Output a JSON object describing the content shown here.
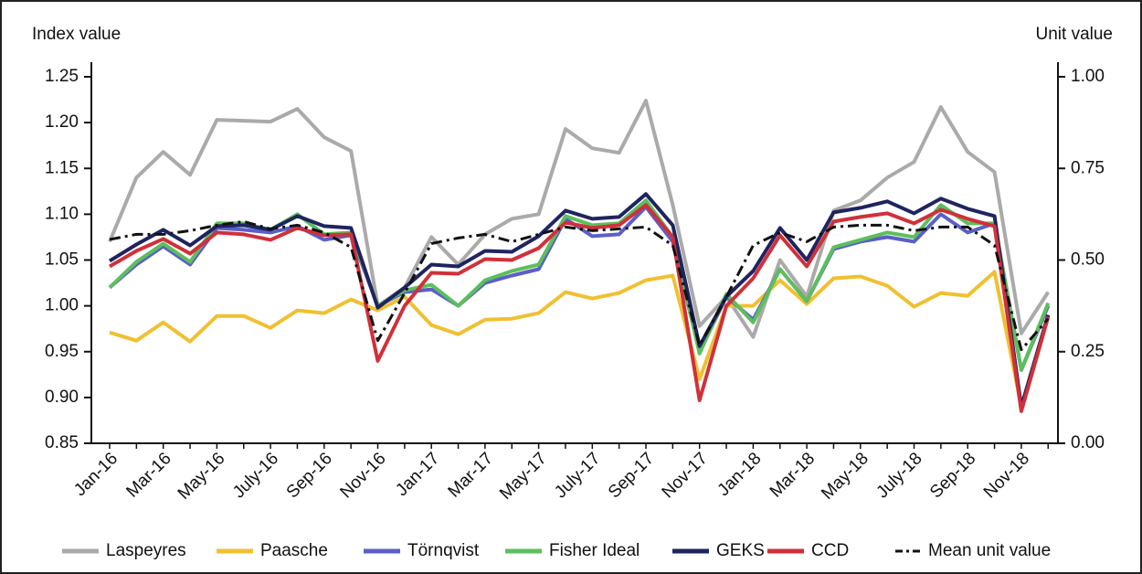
{
  "chart_data": {
    "type": "line",
    "y_label": "Index value",
    "y2_label": "Unit value",
    "categories": [
      "Jan-16",
      null,
      "Mar-16",
      null,
      "May-16",
      null,
      "July-16",
      null,
      "Sep-16",
      null,
      "Nov-16",
      null,
      "Jan-17",
      null,
      "Mar-17",
      null,
      "May-17",
      null,
      "July-17",
      null,
      "Sep-17",
      null,
      "Nov-17",
      null,
      "Jan-18",
      null,
      "Mar-18",
      null,
      "May-18",
      null,
      "July-18",
      null,
      "Sep-18",
      null,
      "Nov-18",
      null
    ],
    "ylim": [
      0.85,
      1.25
    ],
    "yticks": [
      0.85,
      {
        "value": 0.9,
        "label": "0.90"
      },
      0.95,
      {
        "value": 1.0,
        "label": "1.00"
      },
      1.05,
      {
        "value": 1.1,
        "label": "1.10"
      },
      1.15,
      {
        "value": 1.2,
        "label": "1.20"
      },
      1.25
    ],
    "y2lim": [
      0,
      1
    ],
    "y2ticks": [
      {
        "value": 0,
        "label": "0.00"
      },
      0.25,
      {
        "value": 0.5,
        "label": "0.50"
      },
      0.75,
      {
        "value": 1,
        "label": "1.00"
      }
    ],
    "grid": false,
    "legend": "bottom",
    "series": [
      {
        "name": "Laspeyres",
        "color": "#aaaaaa",
        "values": [
          1.07,
          1.14,
          1.168,
          1.143,
          1.203,
          1.202,
          1.201,
          1.215,
          1.184,
          1.169,
          1.0,
          1.02,
          1.075,
          1.045,
          1.078,
          1.095,
          1.1,
          1.193,
          1.172,
          1.167,
          1.224,
          1.11,
          0.978,
          1.01,
          0.966,
          1.05,
          1.01,
          1.104,
          1.115,
          1.14,
          1.157,
          1.217,
          1.168,
          1.146,
          0.97,
          1.015
        ]
      },
      {
        "name": "Paasche",
        "color": "#f0c030",
        "values": [
          0.971,
          0.962,
          0.982,
          0.961,
          0.989,
          0.989,
          0.976,
          0.995,
          0.992,
          1.007,
          0.995,
          1.01,
          0.979,
          0.969,
          0.985,
          0.986,
          0.992,
          1.015,
          1.008,
          1.014,
          1.028,
          1.033,
          0.92,
          1.0,
          1.0,
          1.028,
          1.002,
          1.03,
          1.032,
          1.022,
          0.999,
          1.014,
          1.011,
          1.037,
          0.89,
          0.99
        ]
      },
      {
        "name": "Törnqvist",
        "color": "#5b5fc7",
        "values": [
          1.02,
          1.045,
          1.065,
          1.045,
          1.085,
          1.083,
          1.08,
          1.087,
          1.072,
          1.077,
          1.0,
          1.015,
          1.018,
          1.0,
          1.025,
          1.033,
          1.04,
          1.095,
          1.076,
          1.078,
          1.108,
          1.07,
          0.95,
          1.01,
          0.985,
          1.04,
          1.005,
          1.062,
          1.07,
          1.075,
          1.07,
          1.1,
          1.08,
          1.09,
          0.93,
          1.0
        ]
      },
      {
        "name": "Fisher Ideal",
        "color": "#5cbf5c",
        "values": [
          1.02,
          1.048,
          1.068,
          1.048,
          1.09,
          1.09,
          1.083,
          1.1,
          1.078,
          1.08,
          1.0,
          1.017,
          1.023,
          1.0,
          1.028,
          1.038,
          1.045,
          1.098,
          1.088,
          1.09,
          1.115,
          1.075,
          0.948,
          1.013,
          0.982,
          1.04,
          1.005,
          1.064,
          1.072,
          1.08,
          1.075,
          1.11,
          1.09,
          1.09,
          0.93,
          1.003
        ]
      },
      {
        "name": "GEKS",
        "color": "#1f2460",
        "values": [
          1.049,
          1.067,
          1.083,
          1.066,
          1.087,
          1.088,
          1.083,
          1.098,
          1.087,
          1.085,
          0.998,
          1.02,
          1.045,
          1.043,
          1.06,
          1.059,
          1.076,
          1.104,
          1.095,
          1.097,
          1.122,
          1.088,
          0.956,
          1.01,
          1.038,
          1.085,
          1.05,
          1.102,
          1.107,
          1.114,
          1.101,
          1.117,
          1.106,
          1.098,
          0.89,
          0.99
        ]
      },
      {
        "name": "CCD",
        "color": "#d0303a",
        "values": [
          1.043,
          1.06,
          1.073,
          1.057,
          1.08,
          1.078,
          1.072,
          1.085,
          1.077,
          1.078,
          0.94,
          1.0,
          1.036,
          1.035,
          1.051,
          1.05,
          1.063,
          1.091,
          1.085,
          1.088,
          1.11,
          1.075,
          0.897,
          1.0,
          1.03,
          1.077,
          1.043,
          1.092,
          1.097,
          1.101,
          1.09,
          1.105,
          1.095,
          1.087,
          0.885,
          0.988
        ]
      },
      {
        "name": "Mean unit value",
        "color": "#111111",
        "axis": "y2",
        "line_style": "dashdot",
        "values": [
          0.556,
          0.57,
          0.57,
          0.58,
          0.595,
          0.605,
          0.585,
          0.595,
          0.575,
          0.535,
          0.28,
          0.41,
          0.545,
          0.56,
          0.57,
          0.55,
          0.57,
          0.59,
          0.58,
          0.585,
          0.59,
          0.54,
          0.267,
          0.4,
          0.54,
          0.575,
          0.55,
          0.59,
          0.595,
          0.595,
          0.58,
          0.59,
          0.59,
          0.54,
          0.255,
          0.34
        ]
      }
    ]
  }
}
